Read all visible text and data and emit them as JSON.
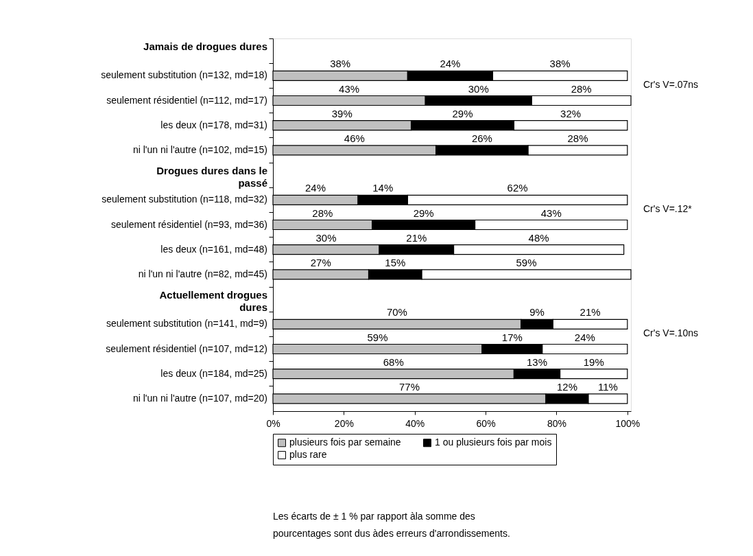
{
  "chart_data": {
    "type": "bar",
    "orientation": "horizontal",
    "stacked": true,
    "categories": [
      "Jamais de drogues dures",
      "seulement substitution (n=132, md=18)",
      "seulement résidentiel (n=112, md=17)",
      "les deux (n=178, md=31)",
      "ni l'un ni l'autre (n=102, md=15)",
      "Drogues dures dans le\npassé",
      "seulement substitution (n=118, md=32)",
      "seulement résidentiel (n=93, md=36)",
      "les deux (n=161, md=48)",
      "ni l'un ni l'autre (n=82, md=45)",
      "Actuellement drogues\ndures",
      "seulement substitution (n=141, md=9)",
      "seulement résidentiel (n=107, md=12)",
      "les deux  (n=184, md=25)",
      "ni l'un ni l'autre (n=107, md=20)"
    ],
    "series": [
      {
        "name": "plusieurs fois par semaine",
        "color": "#c0c0c0",
        "values": [
          null,
          38,
          43,
          39,
          46,
          null,
          24,
          28,
          30,
          27,
          null,
          70,
          59,
          68,
          77
        ],
        "value_labels": [
          null,
          "38%",
          "43%",
          "39%",
          "46%",
          null,
          "24%",
          "28%",
          "30%",
          "27%",
          null,
          "70%",
          "59%",
          "68%",
          "77%"
        ]
      },
      {
        "name": "1 ou plusieurs fois par mois",
        "color": "#000000",
        "values": [
          null,
          24,
          30,
          29,
          26,
          null,
          14,
          29,
          21,
          15,
          null,
          9,
          17,
          13,
          12
        ],
        "value_labels": [
          null,
          "24%",
          "30%",
          "29%",
          "26%",
          null,
          "14%",
          "29%",
          "21%",
          "15%",
          null,
          "9%",
          "17%",
          "13%",
          "12%"
        ]
      },
      {
        "name": "plus rare",
        "color": "#ffffff",
        "values": [
          null,
          38,
          28,
          32,
          28,
          null,
          62,
          43,
          48,
          59,
          null,
          21,
          24,
          19,
          11
        ],
        "value_labels": [
          null,
          "38%",
          "28%",
          "32%",
          "28%",
          null,
          "62%",
          "43%",
          "48%",
          "59%",
          null,
          "21%",
          "24%",
          "19%",
          "11%"
        ]
      }
    ],
    "xlim": [
      0,
      101
    ],
    "xticks": [
      {
        "value": 0,
        "label": "0%"
      },
      {
        "value": 20,
        "label": "20%"
      },
      {
        "value": 40,
        "label": "40%"
      },
      {
        "value": 60,
        "label": "60%"
      },
      {
        "value": 80,
        "label": "80%"
      },
      {
        "value": 100,
        "label": "100%"
      }
    ],
    "legend": "bottom",
    "annotations": [
      "Cr's V=.07ns",
      "Cr's V=.12*",
      "Cr's V=.10ns",
      "Les écarts de ± 1 % par rapport àla somme des\npourcentages sont dus àdes erreurs d'arrondissements."
    ]
  }
}
